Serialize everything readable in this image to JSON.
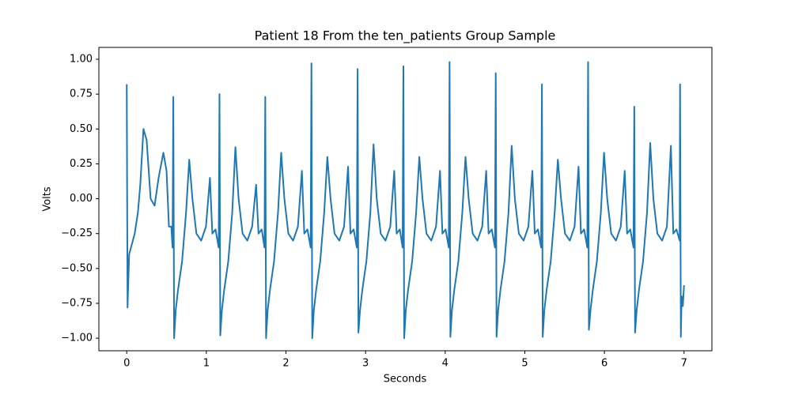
{
  "chart_data": {
    "type": "line",
    "title": "Patient 18 From the ten_patients Group Sample",
    "x_label": "Seconds",
    "y_label": "Volts",
    "xlim": [
      -0.35,
      7.35
    ],
    "ylim": [
      -1.09,
      1.085
    ],
    "xticks": [
      0,
      1,
      2,
      3,
      4,
      5,
      6,
      7
    ],
    "yticks": [
      {
        "value": -1,
        "label": "−1.00"
      },
      {
        "value": -0.75,
        "label": "−0.75"
      },
      {
        "value": -0.5,
        "label": "−0.50"
      },
      {
        "value": -0.25,
        "label": "−0.25"
      },
      {
        "value": 0,
        "label": "0.00"
      },
      {
        "value": 0.25,
        "label": "0.25"
      },
      {
        "value": 0.5,
        "label": "0.50"
      },
      {
        "value": 0.75,
        "label": "0.75"
      },
      {
        "value": 1,
        "label": "1.00"
      }
    ],
    "series": [
      {
        "color": "#1f77b4",
        "x": [
          0,
          0.01,
          0.03,
          0.1,
          0.14,
          0.17,
          0.21,
          0.25,
          0.3,
          0.35,
          0.4,
          0.46,
          0.5,
          0.53,
          0.56,
          0.575,
          0.585,
          0.595,
          0.615,
          0.645,
          0.695,
          0.745,
          0.785,
          0.825,
          0.875,
          0.935,
          0.995,
          1.045,
          1.075,
          1.115,
          1.155,
          1.165,
          1.175,
          1.195,
          1.225,
          1.275,
          1.325,
          1.365,
          1.405,
          1.455,
          1.515,
          1.575,
          1.625,
          1.655,
          1.695,
          1.73,
          1.74,
          1.75,
          1.77,
          1.8,
          1.85,
          1.9,
          1.94,
          1.98,
          2.03,
          2.09,
          2.15,
          2.2,
          2.23,
          2.27,
          2.31,
          2.32,
          2.33,
          2.35,
          2.38,
          2.43,
          2.48,
          2.52,
          2.56,
          2.61,
          2.67,
          2.73,
          2.78,
          2.81,
          2.85,
          2.89,
          2.9,
          2.91,
          2.93,
          2.96,
          3.01,
          3.06,
          3.1,
          3.14,
          3.19,
          3.25,
          3.31,
          3.36,
          3.39,
          3.43,
          3.465,
          3.475,
          3.485,
          3.505,
          3.535,
          3.585,
          3.635,
          3.675,
          3.715,
          3.765,
          3.825,
          3.885,
          3.935,
          3.965,
          4.005,
          4.045,
          4.055,
          4.065,
          4.085,
          4.115,
          4.165,
          4.215,
          4.255,
          4.295,
          4.345,
          4.405,
          4.465,
          4.515,
          4.545,
          4.585,
          4.625,
          4.635,
          4.645,
          4.665,
          4.695,
          4.745,
          4.795,
          4.835,
          4.875,
          4.925,
          4.985,
          5.045,
          5.095,
          5.125,
          5.165,
          5.205,
          5.215,
          5.225,
          5.245,
          5.275,
          5.325,
          5.375,
          5.415,
          5.455,
          5.505,
          5.565,
          5.625,
          5.675,
          5.705,
          5.745,
          5.785,
          5.795,
          5.805,
          5.825,
          5.855,
          5.905,
          5.955,
          5.995,
          6.035,
          6.085,
          6.145,
          6.205,
          6.255,
          6.285,
          6.325,
          6.365,
          6.375,
          6.385,
          6.405,
          6.435,
          6.485,
          6.535,
          6.575,
          6.615,
          6.665,
          6.725,
          6.785,
          6.835,
          6.865,
          6.905,
          6.945,
          6.95,
          6.96,
          6.97,
          6.985,
          7.0
        ],
        "values": [
          0.82,
          -0.78,
          -0.4,
          -0.25,
          -0.1,
          0.1,
          0.5,
          0.42,
          0,
          -0.05,
          0.15,
          0.33,
          0.2,
          -0.2,
          -0.2,
          -0.35,
          0.73,
          -1.0,
          -0.8,
          -0.65,
          -0.45,
          -0.1,
          0.28,
          0.0,
          -0.25,
          -0.3,
          -0.2,
          0.15,
          -0.25,
          -0.22,
          -0.35,
          0.75,
          -0.98,
          -0.8,
          -0.65,
          -0.45,
          -0.1,
          0.37,
          0.0,
          -0.25,
          -0.3,
          -0.2,
          0.1,
          -0.25,
          -0.22,
          -0.35,
          0.73,
          -1.0,
          -0.8,
          -0.65,
          -0.45,
          -0.1,
          0.33,
          0.0,
          -0.25,
          -0.3,
          -0.2,
          0.2,
          -0.25,
          -0.22,
          -0.35,
          0.97,
          -1.0,
          -0.8,
          -0.65,
          -0.45,
          -0.1,
          0.3,
          0.0,
          -0.25,
          -0.3,
          -0.2,
          0.23,
          -0.25,
          -0.22,
          -0.35,
          0.93,
          -0.96,
          -0.8,
          -0.65,
          -0.45,
          -0.1,
          0.39,
          0.0,
          -0.25,
          -0.3,
          -0.2,
          0.2,
          -0.25,
          -0.22,
          -0.35,
          0.95,
          -1.0,
          -0.8,
          -0.65,
          -0.45,
          -0.1,
          0.3,
          0.0,
          -0.25,
          -0.3,
          -0.2,
          0.2,
          -0.25,
          -0.22,
          -0.35,
          0.98,
          -0.99,
          -0.8,
          -0.65,
          -0.45,
          -0.1,
          0.3,
          0.0,
          -0.25,
          -0.3,
          -0.2,
          0.2,
          -0.25,
          -0.22,
          -0.35,
          0.9,
          -0.99,
          -0.8,
          -0.65,
          -0.45,
          -0.1,
          0.38,
          0.0,
          -0.25,
          -0.3,
          -0.2,
          0.2,
          -0.25,
          -0.22,
          -0.35,
          0.82,
          -0.99,
          -0.8,
          -0.65,
          -0.45,
          -0.1,
          0.28,
          0.0,
          -0.25,
          -0.3,
          -0.2,
          0.23,
          -0.25,
          -0.22,
          -0.35,
          0.98,
          -0.94,
          -0.8,
          -0.65,
          -0.45,
          -0.1,
          0.33,
          0.0,
          -0.25,
          -0.3,
          -0.2,
          0.2,
          -0.25,
          -0.22,
          -0.35,
          0.66,
          -0.96,
          -0.8,
          -0.65,
          -0.45,
          -0.1,
          0.4,
          0.0,
          -0.25,
          -0.3,
          -0.2,
          0.38,
          -0.25,
          -0.22,
          -0.3,
          0.82,
          -0.99,
          -0.7,
          -0.77,
          -0.62
        ]
      }
    ]
  }
}
